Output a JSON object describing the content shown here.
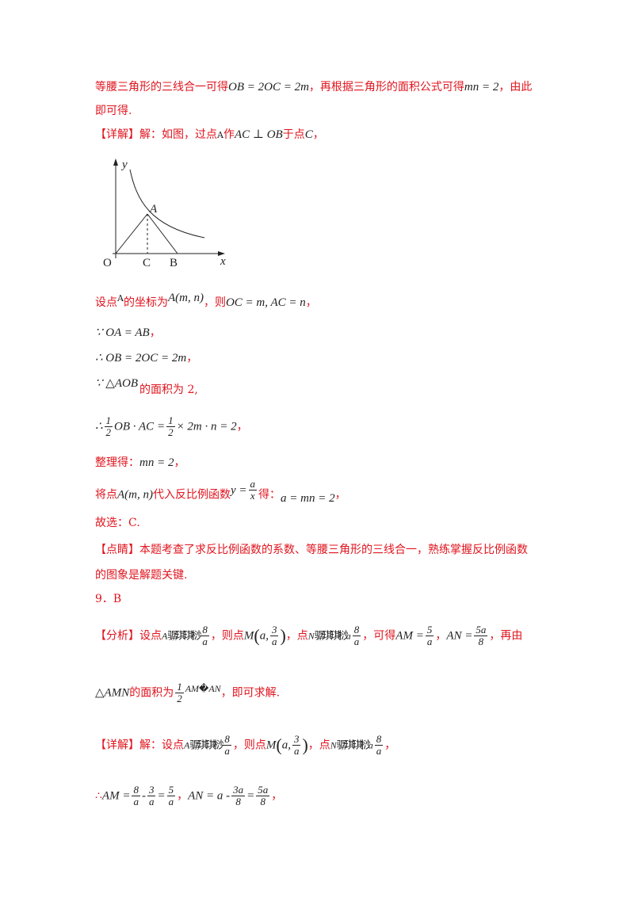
{
  "lines": {
    "l1_a": "等腰三角形的三线合一可得",
    "l1_m1": "OB = 2OC = 2m",
    "l1_b": "，再根据三角形的面积公式可得",
    "l1_m2": "mn = 2",
    "l1_c": "，由此",
    "l2": "即可得.",
    "l3_a": "【详解】解：如图，过点",
    "l3_A": "A",
    "l3_b": "作",
    "l3_m": "AC ⊥ OB",
    "l3_c": "于点",
    "l3_C": "C",
    "l3_d": "，",
    "l4_a": "设点",
    "l4_A": "A",
    "l4_b": "的坐标为",
    "l4_m1": "A(m, n)",
    "l4_c": "，则",
    "l4_m2": "OC = m, AC = n",
    "l4_d": "，",
    "l5_m": "∵ OA = AB",
    "l5_d": "，",
    "l6_m": "∴ OB = 2OC = 2m",
    "l6_d": "，",
    "l7_m": "∵ △AOB",
    "l7_b": "的面积为 2,",
    "l8_pre": "∴",
    "l8_n1": "1",
    "l8_d1": "2",
    "l8_mid": "OB · AC =",
    "l8_n2": "1",
    "l8_d2": "2",
    "l8_post": "× 2m · n = 2",
    "l8_d": "，",
    "l9_a": "整理得：",
    "l9_m": "mn = 2",
    "l9_d": "，",
    "l10_a": "将点",
    "l10_m1": "A(m, n)",
    "l10_b": "代入反比例函数",
    "l10_y": "y =",
    "l10_fn": "a",
    "l10_fd": "x",
    "l10_c": "得：",
    "l10_m2": "a = mn = 2",
    "l10_d": "，",
    "l11": "故选：C.",
    "l12": "【点睛】本题考查了求反比例函数的系数、等腰三角形的三线合一，熟练掌握反比例函数",
    "l13": "的图象是解题关键.",
    "l14": "9．B",
    "l15_a": "【分析】设点",
    "l15_A": "A",
    "l15_g1": "骣琪琪桫",
    "l15_f1n": "8",
    "l15_f1d": "a",
    "l15_b": "，则点",
    "l15_M": "M",
    "l15_Ma": "a,",
    "l15_f2n": "3",
    "l15_f2d": "a",
    "l15_c": "，点",
    "l15_N": "N",
    "l15_g2": "骣琪琪桫",
    "l15_f3n": "a",
    "l15_f4n": "8",
    "l15_f4d": "a",
    "l15_d": "，可得",
    "l15_AM": "AM =",
    "l15_f5n": "5",
    "l15_f5d": "a",
    "l15_e": "，",
    "l15_AN": "AN =",
    "l15_f6n": "5a",
    "l15_f6d": "8",
    "l15_f": "，再由",
    "l16_m": "△AMN",
    "l16_a": "的面积为",
    "l16_fn": "1",
    "l16_fd": "2",
    "l16_m2": "AM",
    "l16_bad": "�",
    "l16_m3": "AN",
    "l16_b": "，即可求解.",
    "l17_a": "【详解】解：设点",
    "l17_A": "A",
    "l17_g1": "骣琪琪桫",
    "l17_f1n": "8",
    "l17_f1d": "a",
    "l17_b": "，则点",
    "l17_M": "M",
    "l17_Ma": "a,",
    "l17_f2n": "3",
    "l17_f2d": "a",
    "l17_c": "，点",
    "l17_N": "N",
    "l17_g2": "骣琪琪桫",
    "l17_f3n": "a",
    "l17_f4n": "8",
    "l17_f4d": "a",
    "l17_d": "，",
    "l18_pre": "∴",
    "l18_AM": "AM =",
    "l18_f1n": "8",
    "l18_f1d": "a",
    "l18_minus": "-",
    "l18_f2n": "3",
    "l18_f2d": "a",
    "l18_eq": "=",
    "l18_f3n": "5",
    "l18_f3d": "a",
    "l18_c": "，",
    "l18_AN": "AN = a -",
    "l18_f4n": "3a",
    "l18_f4d": "8",
    "l18_eq2": "=",
    "l18_f5n": "5a",
    "l18_f5d": "8",
    "l18_d": "，"
  },
  "figure": {
    "y_label": "y",
    "x_label": "x",
    "O": "O",
    "C": "C",
    "B": "B",
    "A": "A"
  },
  "colors": {
    "accent": "#e0141e",
    "math": "#222222"
  }
}
